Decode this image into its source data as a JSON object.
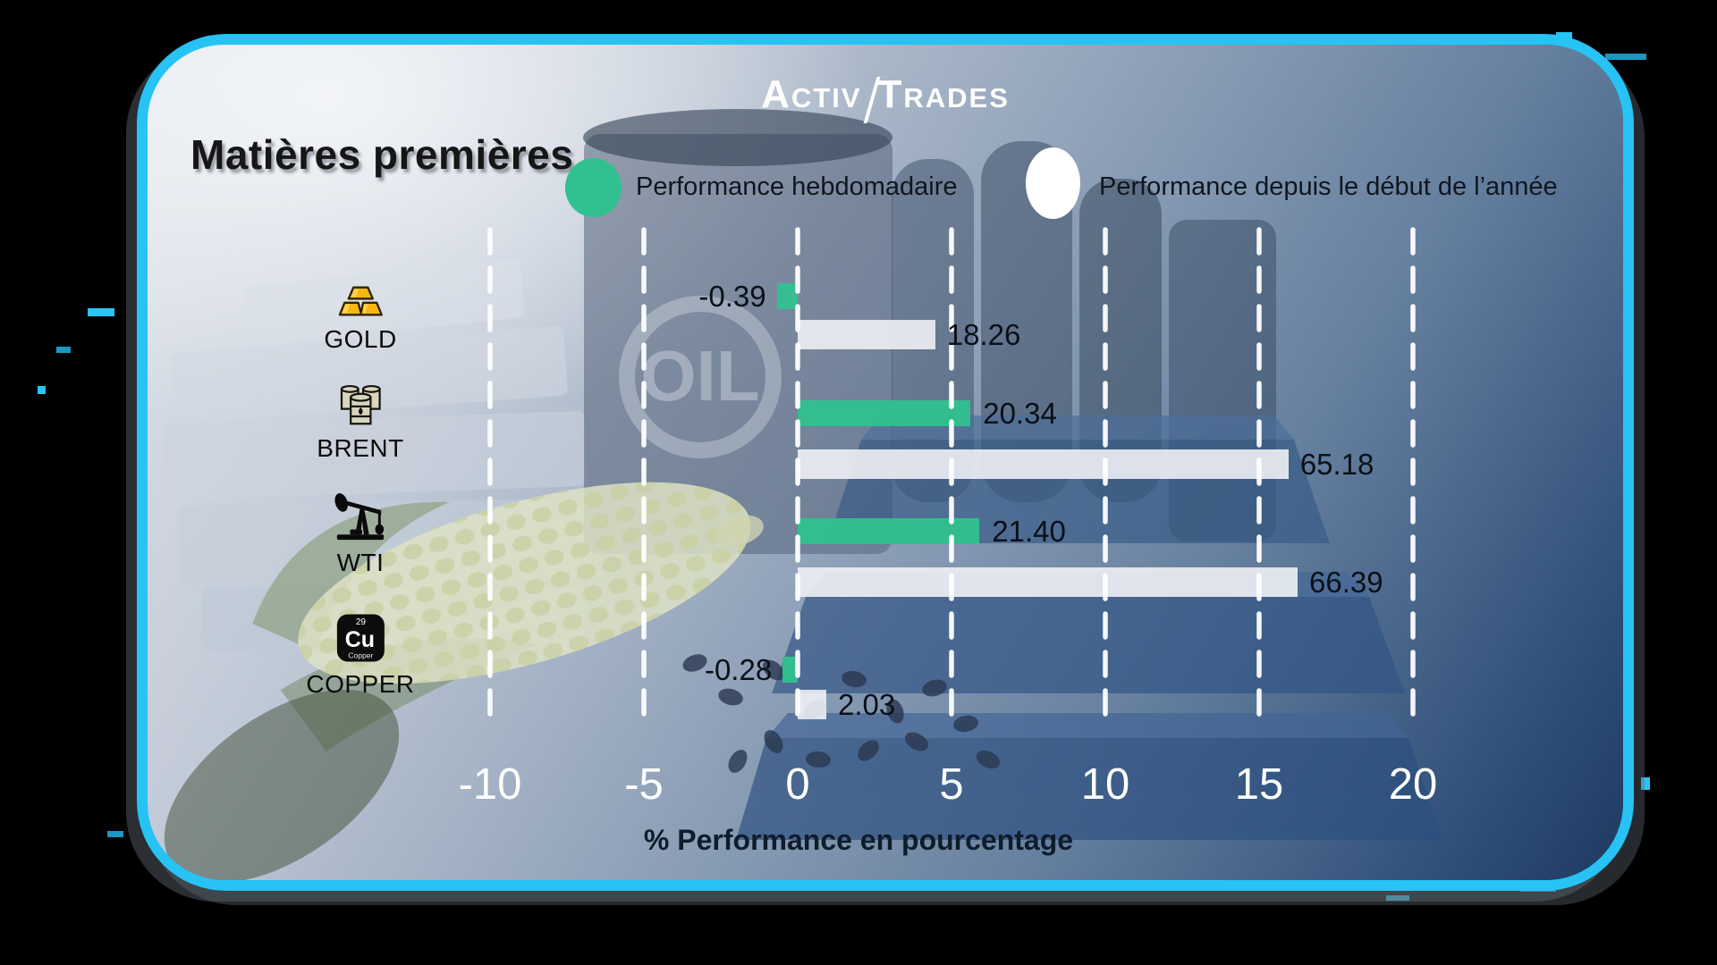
{
  "brand": {
    "name": "ActivTrades",
    "part1": "Activ",
    "part2": "Trades"
  },
  "header": {
    "title": "Matières premières"
  },
  "legend": {
    "weekly": {
      "label": "Performance hebdomadaire",
      "color": "#31c191"
    },
    "ytd": {
      "label": "Performance depuis le début de l’année",
      "color": "#ffffff"
    }
  },
  "chart_data": {
    "type": "bar",
    "orientation": "horizontal",
    "title": "Matières premières",
    "categories": [
      "GOLD",
      "BRENT",
      "WTI",
      "COPPER"
    ],
    "category_icons": [
      "gold-bars-icon",
      "oil-barrels-icon",
      "oil-pumpjack-icon",
      "copper-element-icon"
    ],
    "series": [
      {
        "name": "Performance hebdomadaire",
        "color": "#31c191",
        "values": [
          -0.39,
          20.34,
          21.4,
          -0.28
        ],
        "labels": [
          "-0.39",
          "20.34",
          "21.40",
          "-0.28"
        ]
      },
      {
        "name": "Performance depuis le début de l’année",
        "color": "#eef1f5",
        "values": [
          18.26,
          65.18,
          66.39,
          2.03
        ],
        "labels": [
          "18.26",
          "65.18",
          "66.39",
          "2.03"
        ]
      }
    ],
    "xlabel": "% Performance en pourcentage",
    "x_ticks": [
      "-10",
      "-5",
      "0",
      "5",
      "10",
      "15",
      "20"
    ],
    "x_tick_values": [
      -10,
      -5,
      0,
      5,
      10,
      15,
      20
    ],
    "xlim": [
      -12.5,
      22.5
    ],
    "grid": "vertical-dashed-white",
    "legend_position": "top"
  },
  "icons": {
    "copper": {
      "number": "29",
      "symbol": "Cu",
      "name": "Copper"
    }
  },
  "background": {
    "oil_label": "OIL"
  },
  "colors": {
    "border": "#27c3f4",
    "green": "#31c191",
    "white_bar": "#eef1f5",
    "bg_light": "#e2e6ec",
    "bg_dark": "#1d3a60",
    "tick_text": "#ffffff",
    "dark_text": "#10161f"
  }
}
